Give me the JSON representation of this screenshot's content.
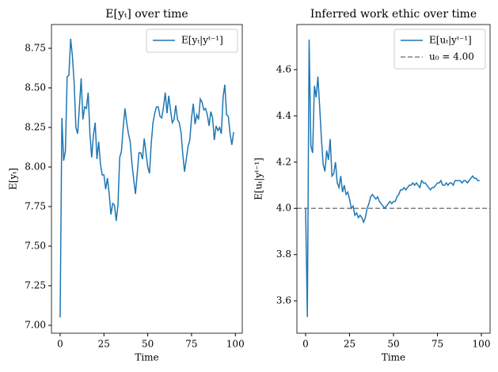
{
  "chart_data": [
    {
      "type": "line",
      "title": "E[yₜ] over time",
      "x_label": "Time",
      "y_label": "E[yₜ]",
      "x": [
        0,
        1,
        2,
        3,
        4,
        5,
        6,
        7,
        8,
        9,
        10,
        11,
        12,
        13,
        14,
        15,
        16,
        17,
        18,
        19,
        20,
        21,
        22,
        23,
        24,
        25,
        26,
        27,
        28,
        29,
        30,
        31,
        32,
        33,
        34,
        35,
        36,
        37,
        38,
        39,
        40,
        41,
        42,
        43,
        44,
        45,
        46,
        47,
        48,
        49,
        50,
        51,
        52,
        53,
        54,
        55,
        56,
        57,
        58,
        59,
        60,
        61,
        62,
        63,
        64,
        65,
        66,
        67,
        68,
        69,
        70,
        71,
        72,
        73,
        74,
        75,
        76,
        77,
        78,
        79,
        80,
        81,
        82,
        83,
        84,
        85,
        86,
        87,
        88,
        89,
        90,
        91,
        92,
        93,
        94,
        95,
        96,
        97,
        98,
        99
      ],
      "series": [
        {
          "name": "E[yₜ|yᵗ⁻¹]",
          "color": "#1f77b4",
          "values": [
            7.05,
            8.31,
            8.04,
            8.1,
            8.57,
            8.58,
            8.81,
            8.7,
            8.53,
            8.25,
            8.21,
            8.38,
            8.56,
            8.3,
            8.38,
            8.37,
            8.47,
            8.21,
            8.06,
            8.2,
            8.28,
            8.05,
            8.16,
            8.02,
            7.95,
            7.95,
            7.86,
            7.93,
            7.83,
            7.7,
            7.77,
            7.76,
            7.66,
            7.76,
            8.06,
            8.1,
            8.25,
            8.37,
            8.28,
            8.21,
            8.16,
            8.02,
            7.92,
            7.83,
            7.96,
            8.09,
            8.09,
            8.05,
            8.18,
            8.09,
            8.0,
            7.96,
            8.15,
            8.28,
            8.34,
            8.38,
            8.38,
            8.32,
            8.31,
            8.38,
            8.47,
            8.34,
            8.45,
            8.36,
            8.28,
            8.3,
            8.39,
            8.3,
            8.28,
            8.22,
            8.08,
            7.97,
            8.05,
            8.13,
            8.17,
            8.31,
            8.4,
            8.27,
            8.33,
            8.3,
            8.43,
            8.41,
            8.36,
            8.37,
            8.33,
            8.26,
            8.35,
            8.31,
            8.17,
            8.26,
            8.23,
            8.25,
            8.21,
            8.44,
            8.52,
            8.33,
            8.32,
            8.21,
            8.14,
            8.22
          ]
        }
      ],
      "xlim": [
        -4.95,
        103.95
      ],
      "xticks": [
        0,
        25,
        50,
        75,
        100
      ],
      "ylim": [
        6.95,
        8.9
      ],
      "yticks": [
        {
          "value": 7,
          "label": "7.00"
        },
        7.25,
        {
          "value": 7.5,
          "label": "7.50"
        },
        7.75,
        {
          "value": 8,
          "label": "8.00"
        },
        8.25,
        {
          "value": 8.5,
          "label": "8.50"
        },
        8.75
      ],
      "legend": "upper right"
    },
    {
      "type": "line",
      "title": "Inferred work ethic over time",
      "x_label": "Time",
      "y_label": "E[uₜ|yᵗ⁻¹]",
      "x": [
        0,
        1,
        2,
        3,
        4,
        5,
        6,
        7,
        8,
        9,
        10,
        11,
        12,
        13,
        14,
        15,
        16,
        17,
        18,
        19,
        20,
        21,
        22,
        23,
        24,
        25,
        26,
        27,
        28,
        29,
        30,
        31,
        32,
        33,
        34,
        35,
        36,
        37,
        38,
        39,
        40,
        41,
        42,
        43,
        44,
        45,
        46,
        47,
        48,
        49,
        50,
        51,
        52,
        53,
        54,
        55,
        56,
        57,
        58,
        59,
        60,
        61,
        62,
        63,
        64,
        65,
        66,
        67,
        68,
        69,
        70,
        71,
        72,
        73,
        74,
        75,
        76,
        77,
        78,
        79,
        80,
        81,
        82,
        83,
        84,
        85,
        86,
        87,
        88,
        89,
        90,
        91,
        92,
        93,
        94,
        95,
        96,
        97,
        98,
        99
      ],
      "series": [
        {
          "name": "E[uₜ|yᵗ⁻¹]",
          "color": "#1f77b4",
          "values": [
            4.0,
            3.53,
            4.73,
            4.27,
            4.24,
            4.53,
            4.48,
            4.57,
            4.44,
            4.3,
            4.19,
            4.16,
            4.25,
            4.21,
            4.3,
            4.14,
            4.15,
            4.2,
            4.11,
            4.09,
            4.14,
            4.07,
            4.1,
            4.06,
            4.07,
            4.04,
            4.0,
            4.01,
            3.97,
            3.98,
            3.96,
            3.97,
            3.96,
            3.94,
            3.96,
            4.0,
            4.02,
            4.05,
            4.06,
            4.05,
            4.04,
            4.05,
            4.03,
            4.02,
            4.01,
            4.0,
            4.01,
            4.02,
            4.03,
            4.02,
            4.03,
            4.03,
            4.05,
            4.06,
            4.08,
            4.08,
            4.09,
            4.08,
            4.09,
            4.1,
            4.1,
            4.11,
            4.1,
            4.11,
            4.1,
            4.09,
            4.12,
            4.11,
            4.11,
            4.1,
            4.09,
            4.08,
            4.09,
            4.09,
            4.1,
            4.11,
            4.11,
            4.12,
            4.1,
            4.1,
            4.11,
            4.1,
            4.11,
            4.11,
            4.1,
            4.12,
            4.12,
            4.12,
            4.12,
            4.11,
            4.12,
            4.12,
            4.11,
            4.12,
            4.13,
            4.14,
            4.13,
            4.13,
            4.12,
            4.12
          ]
        }
      ],
      "hline": {
        "value": 4,
        "label": "u₀ = 4.00",
        "color": "#808080"
      },
      "xlim": [
        -4.95,
        104.95
      ],
      "xticks": [
        0,
        25,
        50,
        75,
        100
      ],
      "ylim": [
        3.46,
        4.795
      ],
      "yticks": [
        3.6,
        3.8,
        {
          "value": 4,
          "label": "4.0"
        },
        4.2,
        4.4,
        4.6
      ],
      "legend": "upper right"
    }
  ]
}
